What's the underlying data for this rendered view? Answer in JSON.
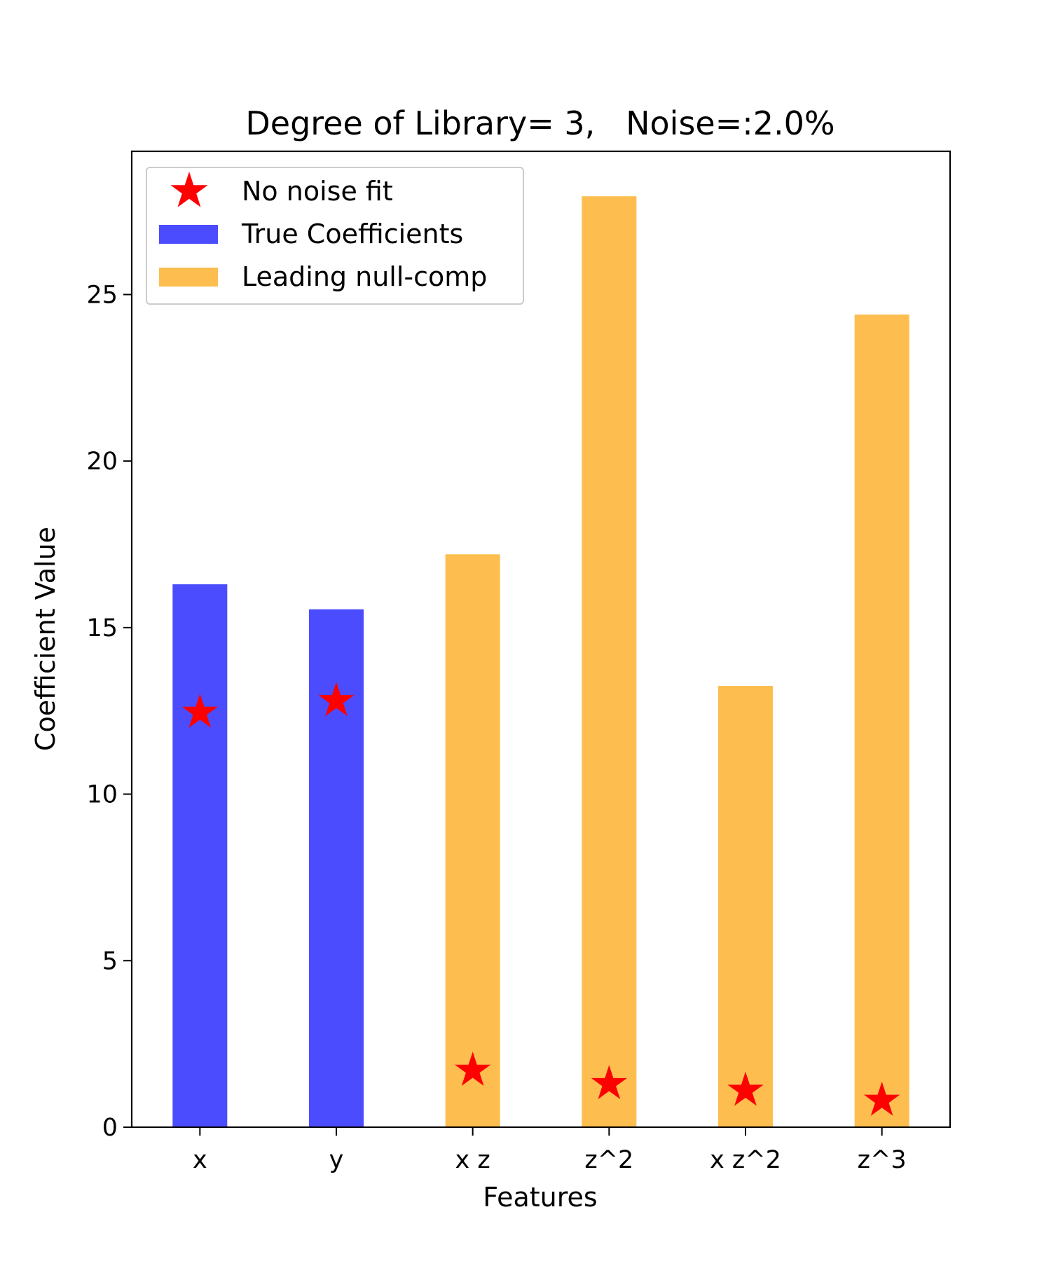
{
  "chart_data": {
    "type": "bar",
    "title": "Degree of Library= 3,   Noise=:2.0%",
    "xlabel": "Features",
    "ylabel": "Coefficient Value",
    "categories": [
      "x",
      "y",
      "x z",
      "z^2",
      "x z^2",
      "z^3"
    ],
    "ylim": [
      0,
      29.3
    ],
    "yticks": [
      0,
      5,
      10,
      15,
      20,
      25
    ],
    "bars": {
      "values": [
        16.3,
        15.55,
        17.2,
        27.95,
        13.25,
        24.4
      ],
      "groups": [
        "True Coefficients",
        "True Coefficients",
        "Leading null-comp",
        "Leading null-comp",
        "Leading null-comp",
        "Leading null-comp"
      ]
    },
    "series": [
      {
        "name": "No noise fit",
        "kind": "marker",
        "marker": "star",
        "color": "#ff0000",
        "values": [
          12.45,
          12.8,
          1.7,
          1.3,
          1.1,
          0.8
        ]
      },
      {
        "name": "True Coefficients",
        "kind": "bar",
        "color": "#4c4cff"
      },
      {
        "name": "Leading null-comp",
        "kind": "bar",
        "color": "#fdbe4f"
      }
    ],
    "legend": {
      "placement": "top-left"
    },
    "grid": false
  }
}
